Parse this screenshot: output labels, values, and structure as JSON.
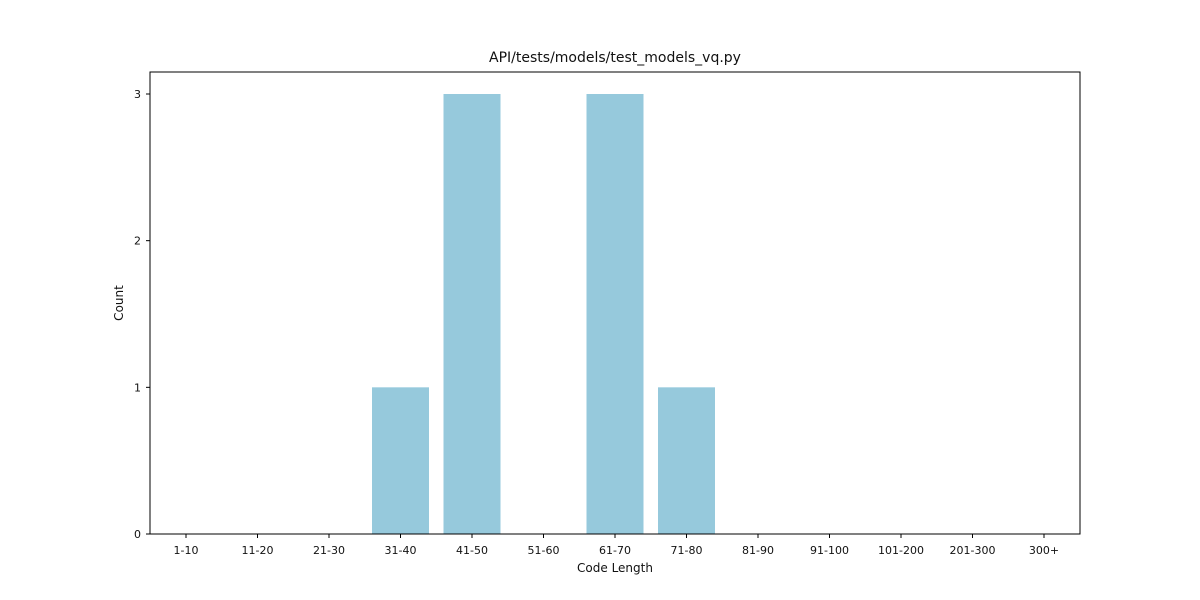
{
  "chart_data": {
    "type": "bar",
    "title": "API/tests/models/test_models_vq.py",
    "xlabel": "Code Length",
    "ylabel": "Count",
    "categories": [
      "1-10",
      "11-20",
      "21-30",
      "31-40",
      "41-50",
      "51-60",
      "61-70",
      "71-80",
      "81-90",
      "91-100",
      "101-200",
      "201-300",
      "300+"
    ],
    "values": [
      0,
      0,
      0,
      1,
      3,
      0,
      3,
      1,
      0,
      0,
      0,
      0,
      0
    ],
    "ylim": [
      0,
      3.15
    ],
    "yticks": [
      0,
      1,
      2,
      3
    ],
    "bar_color": "#96c9dc",
    "grid": false,
    "legend": "none"
  }
}
